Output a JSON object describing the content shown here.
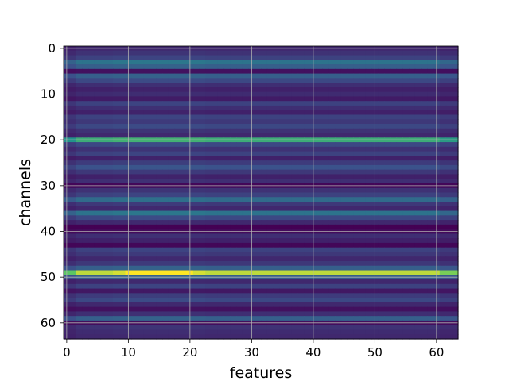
{
  "chart_data": {
    "type": "heatmap",
    "title": "",
    "xlabel": "features",
    "ylabel": "channels",
    "xlim": [
      -0.5,
      63.5
    ],
    "ylim": [
      63.5,
      -0.5
    ],
    "n_rows": 64,
    "n_cols": 64,
    "grid": true,
    "colormap": "viridis",
    "x_ticks": [
      0,
      10,
      20,
      30,
      40,
      50,
      60
    ],
    "y_ticks": [
      0,
      10,
      20,
      30,
      40,
      50,
      60
    ],
    "row_values": [
      0.12,
      0.15,
      0.2,
      0.38,
      0.3,
      0.05,
      0.3,
      0.22,
      0.14,
      0.1,
      0.13,
      0.08,
      0.2,
      0.14,
      0.1,
      0.2,
      0.17,
      0.22,
      0.15,
      0.12,
      0.62,
      0.22,
      0.15,
      0.2,
      0.1,
      0.18,
      0.25,
      0.17,
      0.1,
      0.14,
      0.02,
      0.15,
      0.2,
      0.35,
      0.17,
      0.12,
      0.38,
      0.22,
      0.12,
      0.0,
      0.03,
      0.14,
      0.1,
      0.02,
      0.2,
      0.17,
      0.12,
      0.17,
      0.3,
      0.9,
      0.3,
      0.12,
      0.2,
      0.07,
      0.18,
      0.22,
      0.12,
      0.05,
      0.14,
      0.3,
      0.04,
      0.15,
      0.13,
      0.12
    ]
  }
}
